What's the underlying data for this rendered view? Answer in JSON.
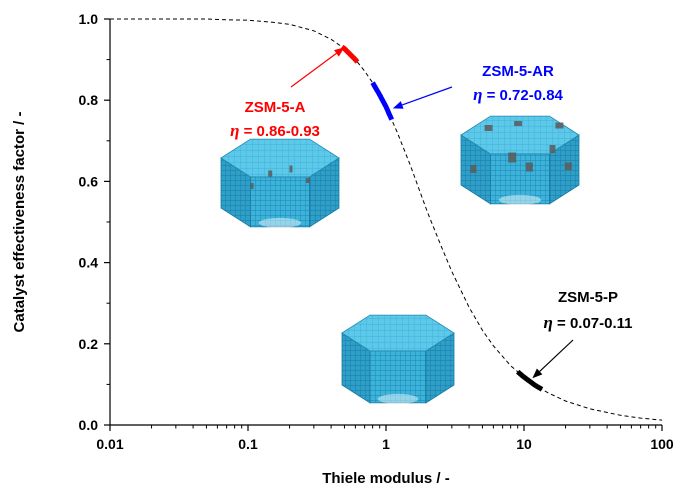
{
  "chart_data": {
    "type": "line",
    "title": "",
    "xlabel": "Thiele modulus / -",
    "ylabel": "Catalyst effectiveness factor / -",
    "xscale": "log",
    "xlim": [
      0.01,
      100
    ],
    "ylim": [
      0.0,
      1.0
    ],
    "xticks": [
      "0.01",
      "0.1",
      "1",
      "10",
      "100"
    ],
    "yticks": [
      "0.0",
      "0.2",
      "0.4",
      "0.6",
      "0.8",
      "1.0"
    ],
    "grid": false,
    "legend": "none",
    "curve": {
      "style": "dashed",
      "color": "#000000",
      "x": [
        0.01,
        0.03,
        0.05,
        0.07,
        0.1,
        0.15,
        0.2,
        0.3,
        0.4,
        0.5,
        0.6,
        0.7,
        0.8,
        0.9,
        1.0,
        1.2,
        1.5,
        2.0,
        2.5,
        3.0,
        4.0,
        5.0,
        6.0,
        8.0,
        10.0,
        12.0,
        15.0,
        20.0,
        30.0,
        50.0,
        70.0,
        100.0
      ],
      "y": [
        1.0,
        1.0,
        1.0,
        0.998,
        0.997,
        0.992,
        0.987,
        0.971,
        0.95,
        0.927,
        0.9,
        0.872,
        0.843,
        0.813,
        0.784,
        0.723,
        0.64,
        0.524,
        0.442,
        0.378,
        0.29,
        0.233,
        0.195,
        0.146,
        0.118,
        0.098,
        0.079,
        0.059,
        0.04,
        0.024,
        0.017,
        0.012
      ]
    },
    "segments": [
      {
        "name": "ZSM-5-A",
        "color": "#ff0000",
        "x_range": [
          0.48,
          0.62
        ]
      },
      {
        "name": "ZSM-5-AR",
        "color": "#0000ff",
        "x_range": [
          0.8,
          1.1
        ]
      },
      {
        "name": "ZSM-5-P",
        "color": "#000000",
        "x_range": [
          9.0,
          13.5
        ]
      }
    ],
    "annotations": [
      {
        "id": "a",
        "label": "ZSM-5-A",
        "eta_prefix": "η",
        "eta_text": " = 0.86-0.93",
        "color": "#ff0000",
        "arrow_to": [
          0.5,
          0.93
        ]
      },
      {
        "id": "ar",
        "label": "ZSM-5-AR",
        "eta_prefix": "η",
        "eta_text": " = 0.72-0.84",
        "color": "#0000ff",
        "arrow_to": [
          1.12,
          0.78
        ]
      },
      {
        "id": "p",
        "label": "ZSM-5-P",
        "eta_prefix": "η",
        "eta_text": " = 0.07-0.11",
        "color": "#000000",
        "arrow_to": [
          11.5,
          0.115
        ]
      }
    ],
    "crystal_colors": {
      "face": "#3bb3da",
      "top": "#5cc8ea",
      "dark": "#2a95bd",
      "line": "#1f86ad",
      "defect": "#555555"
    }
  }
}
